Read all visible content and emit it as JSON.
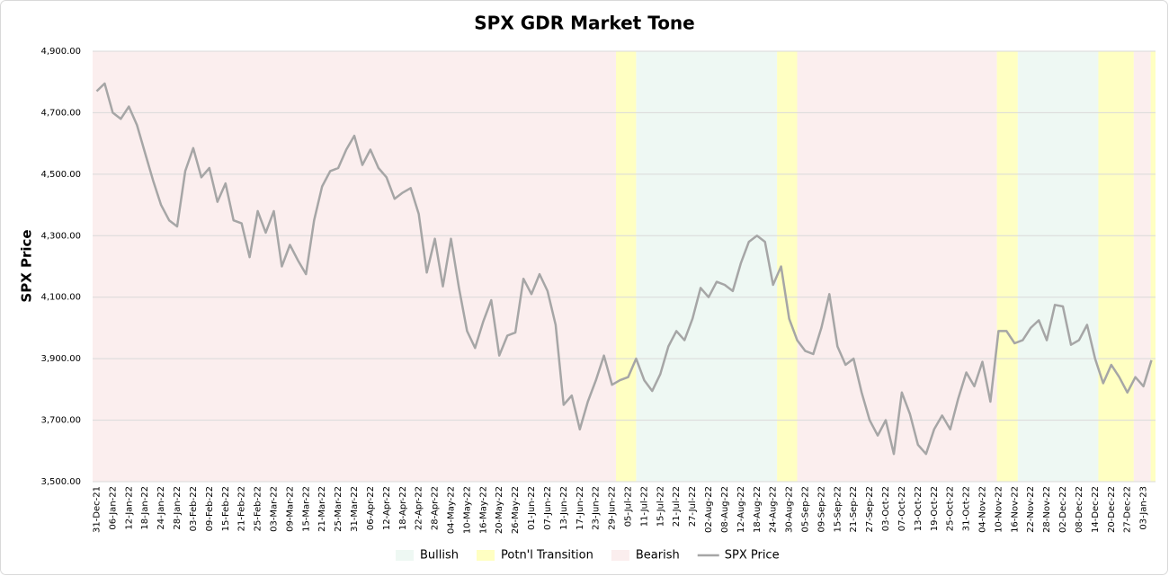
{
  "chart_data": {
    "type": "line",
    "title": "SPX GDR Market Tone",
    "y_label": "SPX Price",
    "ylim": [
      3500,
      4900
    ],
    "yticks": [
      {
        "value": 3500,
        "label": "3,500.00"
      },
      {
        "value": 3700,
        "label": "3,700.00"
      },
      {
        "value": 3900,
        "label": "3,900.00"
      },
      {
        "value": 4100,
        "label": "4,100.00"
      },
      {
        "value": 4300,
        "label": "4,300.00"
      },
      {
        "value": 4500,
        "label": "4,500.00"
      },
      {
        "value": 4700,
        "label": "4,700.00"
      },
      {
        "value": 4900,
        "label": "4,900.00"
      }
    ],
    "grid": true,
    "categories": [
      "31-Dec-21",
      null,
      "06-Jan-22",
      null,
      "12-Jan-22",
      null,
      "18-Jan-22",
      null,
      "24-Jan-22",
      null,
      "28-Jan-22",
      null,
      "03-Feb-22",
      null,
      "09-Feb-22",
      null,
      "15-Feb-22",
      null,
      "21-Feb-22",
      null,
      "25-Feb-22",
      null,
      "03-Mar-22",
      null,
      "09-Mar-22",
      null,
      "15-Mar-22",
      null,
      "21-Mar-22",
      null,
      "25-Mar-22",
      null,
      "31-Mar-22",
      null,
      "06-Apr-22",
      null,
      "12-Apr-22",
      null,
      "18-Apr-22",
      null,
      "22-Apr-22",
      null,
      "28-Apr-22",
      null,
      "04-May-22",
      null,
      "10-May-22",
      null,
      "16-May-22",
      null,
      "20-May-22",
      null,
      "26-May-22",
      null,
      "01-Jun-22",
      null,
      "07-Jun-22",
      null,
      "13-Jun-22",
      null,
      "17-Jun-22",
      null,
      "23-Jun-22",
      null,
      "29-Jun-22",
      null,
      "05-Jul-22",
      null,
      "11-Jul-22",
      null,
      "15-Jul-22",
      null,
      "21-Jul-22",
      null,
      "27-Jul-22",
      null,
      "02-Aug-22",
      null,
      "08-Aug-22",
      null,
      "12-Aug-22",
      null,
      "18-Aug-22",
      null,
      "24-Aug-22",
      null,
      "30-Aug-22",
      null,
      "05-Sep-22",
      null,
      "09-Sep-22",
      null,
      "15-Sep-22",
      null,
      "21-Sep-22",
      null,
      "27-Sep-22",
      null,
      "03-Oct-22",
      null,
      "07-Oct-22",
      null,
      "13-Oct-22",
      null,
      "19-Oct-22",
      null,
      "25-Oct-22",
      null,
      "31-Oct-22",
      null,
      "04-Nov-22",
      null,
      "10-Nov-22",
      null,
      "16-Nov-22",
      null,
      "22-Nov-22",
      null,
      "28-Nov-22",
      null,
      "02-Dec-22",
      null,
      "08-Dec-22",
      null,
      "14-Dec-22",
      null,
      "20-Dec-22",
      null,
      "27-Dec-22",
      null,
      "03-Jan-23",
      null
    ],
    "series": [
      {
        "name": "SPX Price",
        "color": "#a6a6a6",
        "values": [
          4770,
          4795,
          4700,
          4680,
          4720,
          4660,
          4570,
          4480,
          4400,
          4350,
          4330,
          4510,
          4585,
          4490,
          4520,
          4410,
          4470,
          4350,
          4340,
          4230,
          4380,
          4310,
          4380,
          4200,
          4270,
          4220,
          4175,
          4350,
          4460,
          4510,
          4520,
          4580,
          4625,
          4530,
          4580,
          4520,
          4490,
          4420,
          4440,
          4455,
          4370,
          4180,
          4290,
          4135,
          4290,
          4130,
          3990,
          3935,
          4020,
          4090,
          3910,
          3975,
          3985,
          4160,
          4110,
          4175,
          4120,
          4010,
          3750,
          3780,
          3670,
          3760,
          3830,
          3910,
          3815,
          3830,
          3840,
          3900,
          3830,
          3795,
          3850,
          3940,
          3990,
          3960,
          4030,
          4130,
          4100,
          4150,
          4140,
          4120,
          4210,
          4280,
          4300,
          4280,
          4140,
          4200,
          4030,
          3960,
          3925,
          3915,
          4000,
          4110,
          3940,
          3880,
          3900,
          3790,
          3700,
          3650,
          3700,
          3590,
          3790,
          3720,
          3620,
          3590,
          3670,
          3715,
          3670,
          3770,
          3855,
          3810,
          3890,
          3760,
          3990,
          3990,
          3950,
          3960,
          4000,
          4025,
          3960,
          4075,
          4070,
          3945,
          3960,
          4010,
          3900,
          3820,
          3880,
          3840,
          3790,
          3840,
          3810,
          3895
        ]
      }
    ],
    "tones": [
      {
        "name": "Bullish",
        "color": "#eef8f3"
      },
      {
        "name": "Potn'l Transition",
        "color": "#ffffc2"
      },
      {
        "name": "Bearish",
        "color": "#fbeeee"
      }
    ],
    "bands": [
      {
        "tone": 2,
        "from": -0.5,
        "to": 64.5
      },
      {
        "tone": 1,
        "from": 64.5,
        "to": 67
      },
      {
        "tone": 0,
        "from": 67,
        "to": 84.5
      },
      {
        "tone": 1,
        "from": 84.5,
        "to": 87
      },
      {
        "tone": 2,
        "from": 87,
        "to": 111.8
      },
      {
        "tone": 1,
        "from": 111.8,
        "to": 114.4
      },
      {
        "tone": 0,
        "from": 114.4,
        "to": 124.4
      },
      {
        "tone": 1,
        "from": 124.4,
        "to": 128.8
      },
      {
        "tone": 2,
        "from": 128.8,
        "to": 130.9
      },
      {
        "tone": 1,
        "from": 130.9,
        "to": 131.5
      }
    ]
  }
}
